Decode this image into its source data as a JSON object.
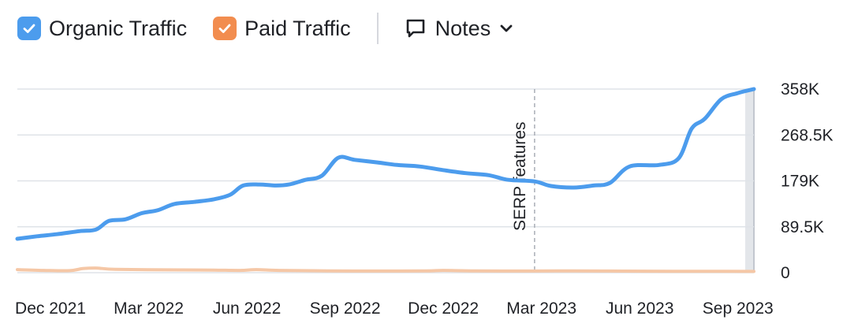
{
  "legend": {
    "organic": {
      "label": "Organic Traffic",
      "color": "#4c9ced",
      "checked": true
    },
    "paid": {
      "label": "Paid Traffic",
      "color": "#f28d4f",
      "checked": true
    }
  },
  "notes": {
    "label": "Notes",
    "icon": "speech-bubble-icon",
    "dropdown_icon": "chevron-down-icon"
  },
  "chart_data": {
    "type": "line",
    "x_labels": [
      "Dec 2021",
      "Mar 2022",
      "Jun 2022",
      "Sep 2022",
      "Dec 2022",
      "Mar 2023",
      "Jun 2023",
      "Sep 2023"
    ],
    "y_ticks": [
      {
        "value": 0,
        "label": "0"
      },
      {
        "value": 89500,
        "label": "89.5K"
      },
      {
        "value": 179000,
        "label": "179K"
      },
      {
        "value": 268500,
        "label": "268.5K"
      },
      {
        "value": 358000,
        "label": "358K"
      }
    ],
    "ylim": [
      0,
      358000
    ],
    "x_range": [
      0,
      22.5
    ],
    "grid": true,
    "y_axis_position": "right",
    "annotations": [
      {
        "x": 15.8,
        "label": "SERP features"
      }
    ],
    "series": [
      {
        "name": "Organic Traffic",
        "color": "#4c9ced",
        "points": [
          [
            0,
            66000
          ],
          [
            0.6,
            71000
          ],
          [
            1.2,
            75000
          ],
          [
            1.9,
            81000
          ],
          [
            2.4,
            84000
          ],
          [
            2.8,
            101000
          ],
          [
            3.3,
            104000
          ],
          [
            3.8,
            116000
          ],
          [
            4.3,
            122000
          ],
          [
            4.8,
            134000
          ],
          [
            5.4,
            138000
          ],
          [
            6.0,
            143000
          ],
          [
            6.5,
            152000
          ],
          [
            6.9,
            170000
          ],
          [
            7.4,
            172000
          ],
          [
            7.9,
            170000
          ],
          [
            8.3,
            172000
          ],
          [
            8.8,
            181000
          ],
          [
            9.3,
            189000
          ],
          [
            9.8,
            224000
          ],
          [
            10.3,
            220000
          ],
          [
            11.0,
            215000
          ],
          [
            11.6,
            210000
          ],
          [
            12.3,
            207000
          ],
          [
            13.0,
            200000
          ],
          [
            13.7,
            194000
          ],
          [
            14.4,
            190000
          ],
          [
            15.0,
            181000
          ],
          [
            15.8,
            178000
          ],
          [
            16.3,
            169000
          ],
          [
            17.0,
            166000
          ],
          [
            17.6,
            170000
          ],
          [
            18.1,
            175000
          ],
          [
            18.7,
            207000
          ],
          [
            19.6,
            210000
          ],
          [
            20.2,
            223000
          ],
          [
            20.6,
            281000
          ],
          [
            21.0,
            300000
          ],
          [
            21.5,
            338000
          ],
          [
            22.0,
            350000
          ],
          [
            22.5,
            358000
          ]
        ]
      },
      {
        "name": "Paid Traffic",
        "color": "#f5c7a6",
        "points": [
          [
            0,
            6000
          ],
          [
            0.8,
            4500
          ],
          [
            1.6,
            4000
          ],
          [
            2.0,
            8000
          ],
          [
            2.4,
            9000
          ],
          [
            3.0,
            6500
          ],
          [
            4.5,
            5500
          ],
          [
            6.0,
            5000
          ],
          [
            6.8,
            4500
          ],
          [
            7.3,
            6000
          ],
          [
            8.0,
            4500
          ],
          [
            9.5,
            3500
          ],
          [
            11.0,
            3200
          ],
          [
            12.5,
            3500
          ],
          [
            13.0,
            4500
          ],
          [
            14.0,
            3500
          ],
          [
            15.8,
            3200
          ],
          [
            17.0,
            3500
          ],
          [
            18.5,
            3000
          ],
          [
            20.0,
            2800
          ],
          [
            21.5,
            2600
          ],
          [
            22.5,
            2500
          ]
        ]
      }
    ]
  }
}
